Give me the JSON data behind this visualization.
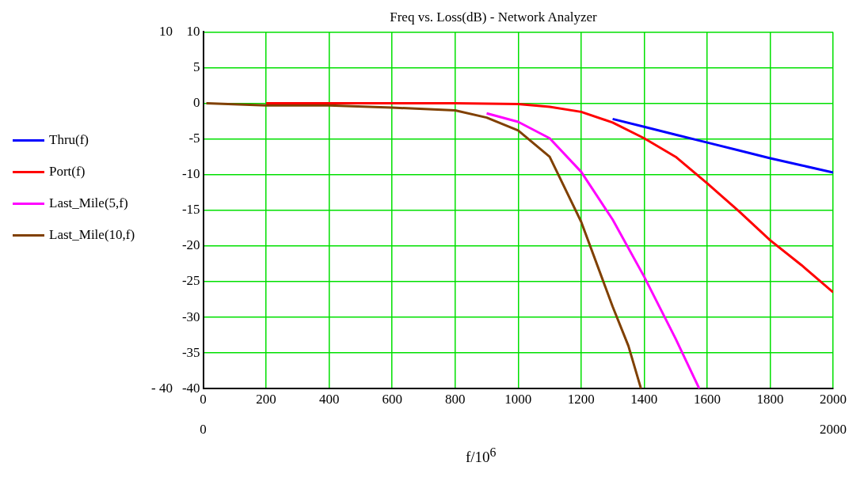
{
  "chart_data": {
    "type": "line",
    "title": "Freq vs. Loss(dB) - Network Analyzer",
    "xlabel": "f/10$^{6}$",
    "xlim": [
      0,
      2000
    ],
    "xticks": [
      0,
      200,
      400,
      600,
      800,
      1000,
      1200,
      1400,
      1600,
      1800,
      2000
    ],
    "ylim": [
      -40,
      10
    ],
    "yticks": [
      -40,
      -35,
      -30,
      -25,
      -20,
      -15,
      -10,
      -5,
      0,
      5,
      10
    ],
    "x2lim": [
      0,
      2000
    ],
    "x2ticks": [
      0,
      2000
    ],
    "y2lim": [
      -40,
      10
    ],
    "y2ticks": [
      {
        "value": -40,
        "label": "- 40"
      },
      10
    ],
    "grid": true,
    "legend": "left",
    "series": [
      {
        "name": "Thru(f)",
        "color": "#0000ff",
        "x": [
          1300,
          1400,
          1500,
          1600,
          1700,
          1800,
          1900,
          2000
        ],
        "values": [
          -2.2,
          -3.3,
          -4.4,
          -5.5,
          -6.6,
          -7.7,
          -8.7,
          -9.7
        ]
      },
      {
        "name": "Port(f)",
        "color": "#ff0000",
        "x": [
          200,
          400,
          600,
          800,
          1000,
          1100,
          1200,
          1300,
          1400,
          1500,
          1600,
          1700,
          1800,
          1900,
          2000
        ],
        "values": [
          0,
          0,
          0,
          0,
          -0.1,
          -0.5,
          -1.2,
          -2.7,
          -4.9,
          -7.5,
          -11.2,
          -15.1,
          -19.2,
          -22.7,
          -26.5
        ]
      },
      {
        "name": "Last_Mile(5,f)",
        "color": "#ff00ff",
        "x": [
          900,
          1000,
          1100,
          1200,
          1300,
          1400,
          1500,
          1575
        ],
        "values": [
          -1.4,
          -2.6,
          -4.9,
          -9.6,
          -16.3,
          -24.3,
          -33,
          -40
        ]
      },
      {
        "name": "Last_Mile(10,f)",
        "color": "#804000",
        "x": [
          10,
          200,
          400,
          600,
          800,
          900,
          1000,
          1100,
          1200,
          1300,
          1350,
          1390
        ],
        "values": [
          0,
          -0.3,
          -0.3,
          -0.6,
          -1.0,
          -2.0,
          -3.8,
          -7.5,
          -16.6,
          -28.5,
          -34,
          -40
        ]
      }
    ]
  }
}
